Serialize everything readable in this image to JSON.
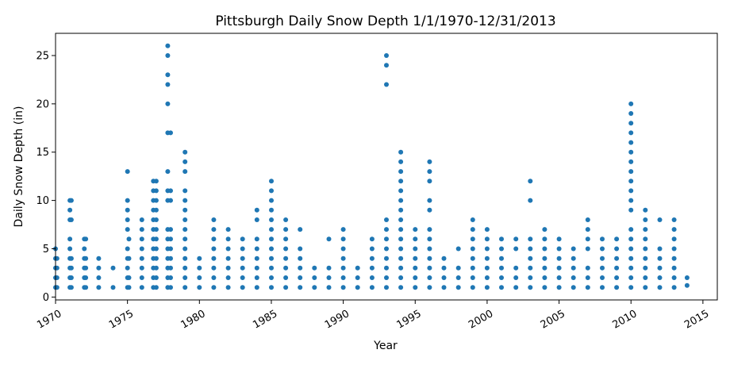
{
  "chart_data": {
    "type": "scatter",
    "title": "Pittsburgh Daily Snow Depth 1/1/1970-12/31/2013",
    "xlabel": "Year",
    "ylabel": "Daily Snow Depth (in)",
    "xlim": [
      1970,
      2016
    ],
    "ylim": [
      -0.3,
      27.3
    ],
    "x_ticks": [
      1970,
      1975,
      1980,
      1985,
      1990,
      1995,
      2000,
      2005,
      2010,
      2015
    ],
    "x_tick_labels": [
      "1970",
      "1975",
      "1980",
      "1985",
      "1990",
      "1995",
      "2000",
      "2005",
      "2010",
      "2015"
    ],
    "y_ticks": [
      0,
      5,
      10,
      15,
      20,
      25
    ],
    "y_tick_labels": [
      "0",
      "5",
      "10",
      "15",
      "20",
      "25"
    ],
    "grid": false,
    "legend": "none",
    "marker_color": "#1f77b4",
    "series": [
      {
        "columns": [
          {
            "x": 1970.0,
            "values": [
              1,
              2,
              3,
              4,
              5
            ]
          },
          {
            "x": 1970.1,
            "values": [
              1,
              2,
              3,
              4
            ]
          },
          {
            "x": 1971.0,
            "values": [
              1,
              2,
              3,
              4,
              5,
              6,
              8,
              9,
              10
            ]
          },
          {
            "x": 1971.1,
            "values": [
              1,
              2,
              3,
              4,
              8,
              10
            ]
          },
          {
            "x": 1972.0,
            "values": [
              1,
              2,
              3,
              4,
              5,
              6
            ]
          },
          {
            "x": 1972.1,
            "values": [
              1,
              2,
              3,
              4,
              6
            ]
          },
          {
            "x": 1973.0,
            "values": [
              1,
              2,
              3,
              4
            ]
          },
          {
            "x": 1974.0,
            "values": [
              1,
              3
            ]
          },
          {
            "x": 1975.0,
            "values": [
              1,
              2,
              3,
              4,
              5,
              7,
              8,
              9,
              10,
              13
            ]
          },
          {
            "x": 1975.1,
            "values": [
              1,
              2,
              4,
              6
            ]
          },
          {
            "x": 1976.0,
            "values": [
              1,
              2,
              3,
              4,
              5,
              6,
              7,
              8
            ]
          },
          {
            "x": 1976.8,
            "values": [
              1,
              2,
              3,
              4,
              5,
              6,
              7,
              8,
              9,
              10,
              11,
              12
            ]
          },
          {
            "x": 1977.0,
            "values": [
              1,
              2,
              3,
              4,
              5,
              6,
              7,
              8,
              9,
              10,
              11,
              12
            ]
          },
          {
            "x": 1977.8,
            "values": [
              1,
              2,
              3,
              4,
              5,
              6,
              7,
              10,
              11,
              13,
              17,
              20,
              22,
              23,
              25,
              26
            ]
          },
          {
            "x": 1978.0,
            "values": [
              1,
              2,
              3,
              4,
              5,
              6,
              7,
              10,
              11,
              17
            ]
          },
          {
            "x": 1979.0,
            "values": [
              1,
              2,
              3,
              4,
              5,
              6,
              7,
              8,
              9,
              10,
              11,
              13,
              14,
              15
            ]
          },
          {
            "x": 1980.0,
            "values": [
              1,
              2,
              3,
              4
            ]
          },
          {
            "x": 1981.0,
            "values": [
              1,
              2,
              3,
              4,
              5,
              6,
              7,
              8
            ]
          },
          {
            "x": 1982.0,
            "values": [
              1,
              2,
              3,
              4,
              5,
              6,
              7
            ]
          },
          {
            "x": 1983.0,
            "values": [
              1,
              2,
              3,
              4,
              5,
              6
            ]
          },
          {
            "x": 1984.0,
            "values": [
              1,
              2,
              3,
              4,
              5,
              6,
              8,
              9
            ]
          },
          {
            "x": 1985.0,
            "values": [
              1,
              2,
              3,
              4,
              5,
              6,
              7,
              8,
              9,
              10,
              11,
              12
            ]
          },
          {
            "x": 1986.0,
            "values": [
              1,
              2,
              3,
              4,
              5,
              6,
              7,
              8
            ]
          },
          {
            "x": 1987.0,
            "values": [
              1,
              2,
              3,
              4,
              5,
              7
            ]
          },
          {
            "x": 1988.0,
            "values": [
              1,
              2,
              3
            ]
          },
          {
            "x": 1989.0,
            "values": [
              1,
              2,
              3,
              6
            ]
          },
          {
            "x": 1990.0,
            "values": [
              1,
              2,
              3,
              4,
              5,
              6,
              7
            ]
          },
          {
            "x": 1991.0,
            "values": [
              1,
              2,
              3
            ]
          },
          {
            "x": 1992.0,
            "values": [
              1,
              2,
              3,
              4,
              5,
              6
            ]
          },
          {
            "x": 1993.0,
            "values": [
              1,
              2,
              3,
              4,
              5,
              6,
              7,
              8,
              22,
              24,
              25
            ]
          },
          {
            "x": 1994.0,
            "values": [
              1,
              2,
              3,
              4,
              5,
              6,
              7,
              8,
              9,
              10,
              11,
              12,
              13,
              14,
              15
            ]
          },
          {
            "x": 1995.0,
            "values": [
              1,
              2,
              3,
              4,
              5,
              6,
              7
            ]
          },
          {
            "x": 1996.0,
            "values": [
              1,
              2,
              3,
              4,
              5,
              6,
              7,
              9,
              10,
              12,
              13,
              14
            ]
          },
          {
            "x": 1997.0,
            "values": [
              1,
              2,
              3,
              4
            ]
          },
          {
            "x": 1998.0,
            "values": [
              1,
              2,
              3,
              5
            ]
          },
          {
            "x": 1999.0,
            "values": [
              1,
              2,
              3,
              4,
              5,
              6,
              7,
              8
            ]
          },
          {
            "x": 2000.0,
            "values": [
              1,
              2,
              3,
              4,
              5,
              6,
              7
            ]
          },
          {
            "x": 2001.0,
            "values": [
              1,
              2,
              3,
              4,
              5,
              6
            ]
          },
          {
            "x": 2002.0,
            "values": [
              1,
              2,
              3,
              5,
              6
            ]
          },
          {
            "x": 2003.0,
            "values": [
              1,
              2,
              3,
              4,
              5,
              6,
              10,
              12
            ]
          },
          {
            "x": 2004.0,
            "values": [
              1,
              2,
              3,
              4,
              5,
              6,
              7
            ]
          },
          {
            "x": 2005.0,
            "values": [
              1,
              2,
              3,
              4,
              5,
              6
            ]
          },
          {
            "x": 2006.0,
            "values": [
              1,
              2,
              3,
              4,
              5
            ]
          },
          {
            "x": 2007.0,
            "values": [
              1,
              2,
              3,
              5,
              6,
              7,
              8
            ]
          },
          {
            "x": 2008.0,
            "values": [
              1,
              2,
              3,
              4,
              5,
              6
            ]
          },
          {
            "x": 2009.0,
            "values": [
              1,
              2,
              3,
              4,
              5,
              6
            ]
          },
          {
            "x": 2010.0,
            "values": [
              1,
              2,
              3,
              4,
              5,
              6,
              7,
              9,
              10,
              11,
              12,
              13,
              14,
              15,
              16,
              17,
              18,
              19,
              20
            ]
          },
          {
            "x": 2011.0,
            "values": [
              1,
              2,
              3,
              4,
              5,
              6,
              7,
              8,
              9
            ]
          },
          {
            "x": 2012.0,
            "values": [
              1,
              2,
              3,
              4,
              5,
              8
            ]
          },
          {
            "x": 2013.0,
            "values": [
              1,
              2,
              3,
              4,
              5,
              6,
              7,
              8
            ]
          },
          {
            "x": 2013.9,
            "values": [
              1.2,
              2
            ]
          }
        ]
      }
    ]
  }
}
